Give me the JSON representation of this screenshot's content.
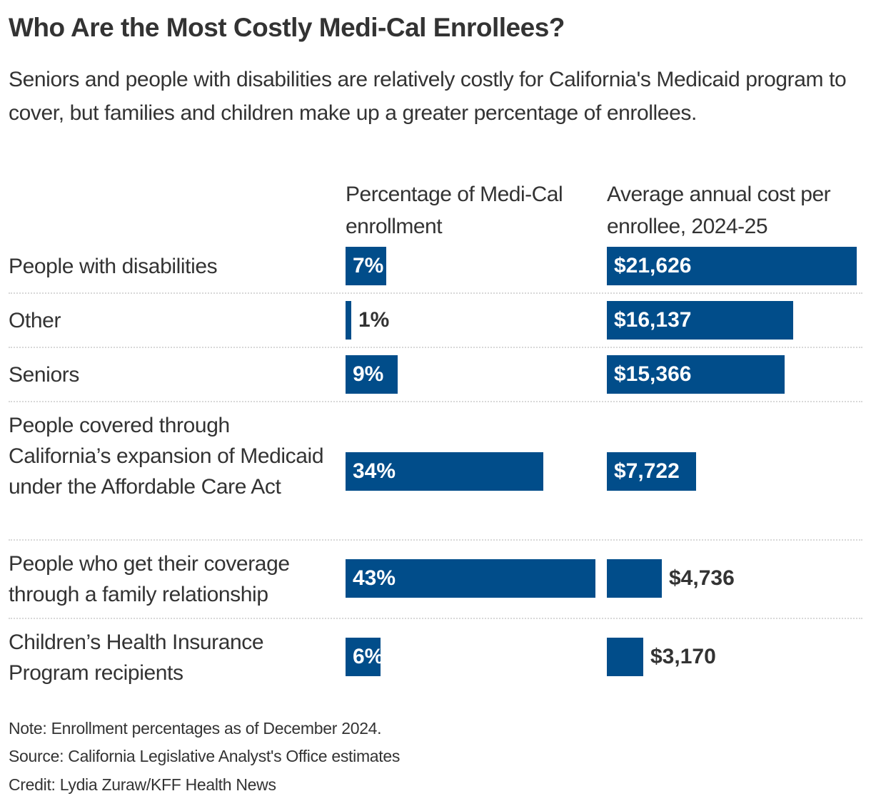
{
  "title": "Who Are the Most Costly Medi-Cal Enrollees?",
  "subtitle": "Seniors and people with disabilities are relatively costly for California's Medicaid program to cover, but families and children make up a greater percentage of enrollees.",
  "footer": {
    "note": "Note: Enrollment percentages as of December 2024.",
    "source": "Source: California Legislative Analyst's Office estimates",
    "credit": "Credit: Lydia Zuraw/KFF Health News"
  },
  "colors": {
    "bar": "#014d8a",
    "text": "#333333",
    "divider": "#d8d8d8"
  },
  "chart_data": {
    "type": "bar",
    "orientation": "horizontal",
    "title": "Who Are the Most Costly Medi-Cal Enrollees?",
    "categories": [
      "People with disabilities",
      "Other",
      "Seniors",
      "People covered through California’s expansion of Medicaid under the Affordable Care Act",
      "People who get their coverage through a family relationship",
      "Children’s Health Insurance Program recipients"
    ],
    "series": [
      {
        "name": "Percentage of Medi-Cal enrollment",
        "values": [
          7,
          1,
          9,
          34,
          43,
          6
        ],
        "labels": [
          "7%",
          "1%",
          "9%",
          "34%",
          "43%",
          "6%"
        ],
        "max": 43
      },
      {
        "name": "Average annual cost per enrollee, 2024-25",
        "values": [
          21626,
          16137,
          15366,
          7722,
          4736,
          3170
        ],
        "labels": [
          "$21,626",
          "$16,137",
          "$15,366",
          "$7,722",
          "$4,736",
          "$3,170"
        ],
        "max": 21626
      }
    ],
    "grid": false,
    "legend": "none"
  }
}
